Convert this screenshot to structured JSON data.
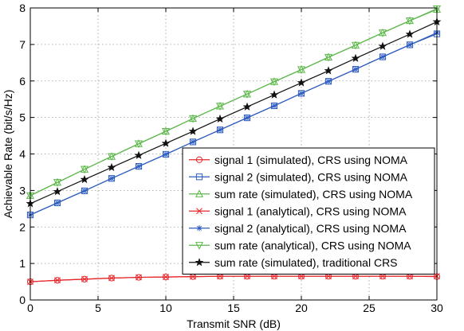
{
  "chart_data": {
    "type": "line",
    "title": "",
    "xlabel": "Transmit SNR (dB)",
    "ylabel": "Achievable Rate (bit/s/Hz)",
    "xlim": [
      0,
      30
    ],
    "ylim": [
      0,
      8
    ],
    "xticks": [
      "0",
      "5",
      "10",
      "15",
      "20",
      "25",
      "30"
    ],
    "yticks": [
      "0",
      "1",
      "2",
      "3",
      "4",
      "5",
      "6",
      "7",
      "8"
    ],
    "grid": true,
    "legend_position": "bottom-right",
    "x": [
      0,
      2,
      4,
      6,
      8,
      10,
      12,
      14,
      16,
      18,
      20,
      22,
      24,
      26,
      28,
      30
    ],
    "series": [
      {
        "name": "signal 1 (simulated), CRS using NOMA",
        "color": "#e8262a",
        "marker": "circle",
        "values": [
          0.5,
          0.54,
          0.57,
          0.6,
          0.62,
          0.63,
          0.64,
          0.65,
          0.65,
          0.65,
          0.65,
          0.65,
          0.65,
          0.65,
          0.65,
          0.64
        ]
      },
      {
        "name": "signal 2 (simulated), CRS using NOMA",
        "color": "#2f5dbf",
        "marker": "square",
        "values": [
          2.33,
          2.66,
          2.99,
          3.33,
          3.66,
          3.99,
          4.33,
          4.66,
          4.99,
          5.32,
          5.66,
          5.99,
          6.32,
          6.66,
          6.99,
          7.29
        ]
      },
      {
        "name": "sum rate (simulated), CRS using NOMA",
        "color": "#5cb84a",
        "marker": "triangle-up",
        "values": [
          2.86,
          3.22,
          3.58,
          3.93,
          4.28,
          4.62,
          4.97,
          5.31,
          5.64,
          5.98,
          6.31,
          6.65,
          6.98,
          7.32,
          7.65,
          7.96
        ]
      },
      {
        "name": "signal 1 (analytical), CRS using NOMA",
        "color": "#e8262a",
        "marker": "x",
        "values": [
          0.5,
          0.54,
          0.57,
          0.6,
          0.62,
          0.63,
          0.64,
          0.65,
          0.65,
          0.65,
          0.65,
          0.65,
          0.65,
          0.65,
          0.65,
          0.65
        ]
      },
      {
        "name": "signal 2 (analytical), CRS using NOMA",
        "color": "#2f5dbf",
        "marker": "star",
        "values": [
          2.33,
          2.66,
          2.99,
          3.33,
          3.66,
          3.99,
          4.33,
          4.66,
          4.99,
          5.32,
          5.66,
          5.99,
          6.32,
          6.66,
          6.99,
          7.32
        ]
      },
      {
        "name": "sum rate (analytical), CRS using NOMA",
        "color": "#5cb84a",
        "marker": "triangle-down",
        "values": [
          2.86,
          3.22,
          3.58,
          3.93,
          4.28,
          4.62,
          4.97,
          5.31,
          5.64,
          5.98,
          6.31,
          6.65,
          6.98,
          7.32,
          7.65,
          7.98
        ]
      },
      {
        "name": "sum rate (simulated), traditional CRS",
        "color": "#111111",
        "marker": "pentagram",
        "values": [
          2.64,
          2.97,
          3.3,
          3.63,
          3.96,
          4.29,
          4.62,
          4.96,
          5.29,
          5.62,
          5.95,
          6.28,
          6.62,
          6.95,
          7.28,
          7.62
        ]
      }
    ]
  }
}
